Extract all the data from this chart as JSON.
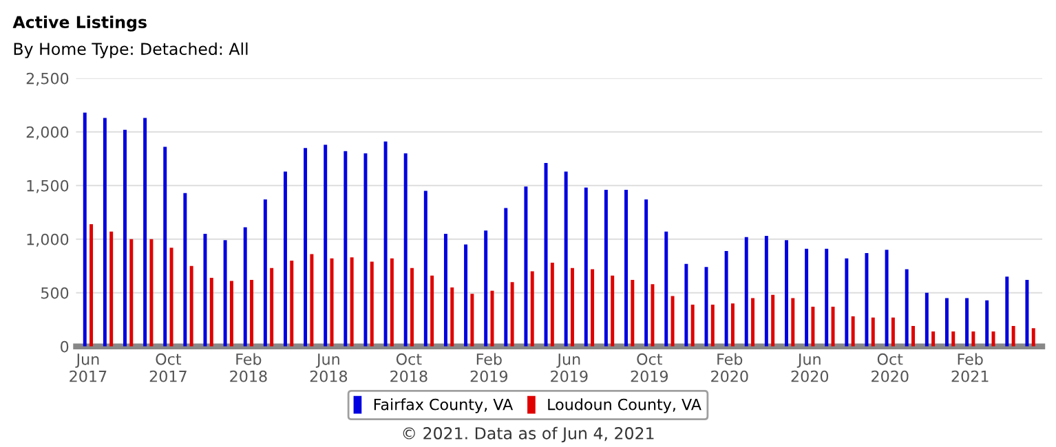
{
  "chart_data": {
    "type": "bar",
    "title": "Active Listings",
    "subtitle": "By Home Type: Detached: All",
    "categories": [
      "Jun\n2017",
      null,
      null,
      null,
      "Oct\n2017",
      null,
      null,
      null,
      "Feb\n2018",
      null,
      null,
      null,
      "Jun\n2018",
      null,
      null,
      null,
      "Oct\n2018",
      null,
      null,
      null,
      "Feb\n2019",
      null,
      null,
      null,
      "Jun\n2019",
      null,
      null,
      null,
      "Oct\n2019",
      null,
      null,
      null,
      "Feb\n2020",
      null,
      null,
      null,
      "Jun\n2020",
      null,
      null,
      null,
      "Oct\n2020",
      null,
      null,
      null,
      "Feb\n2021",
      null,
      null,
      null
    ],
    "series": [
      {
        "name": "Fairfax County, VA",
        "color": "#0000e0",
        "values": [
          2180,
          2130,
          2020,
          2130,
          1860,
          1430,
          1050,
          990,
          1110,
          1370,
          1630,
          1850,
          1880,
          1820,
          1800,
          1910,
          1800,
          1450,
          1050,
          950,
          1080,
          1290,
          1490,
          1710,
          1630,
          1480,
          1460,
          1460,
          1370,
          1070,
          770,
          740,
          890,
          1020,
          1030,
          990,
          910,
          910,
          820,
          870,
          900,
          720,
          500,
          450,
          450,
          430,
          650,
          620
        ]
      },
      {
        "name": "Loudoun County, VA",
        "color": "#e00000",
        "values": [
          1140,
          1070,
          1000,
          1000,
          920,
          750,
          640,
          610,
          620,
          730,
          800,
          860,
          820,
          830,
          790,
          820,
          730,
          660,
          550,
          490,
          520,
          600,
          700,
          780,
          730,
          720,
          660,
          620,
          580,
          470,
          390,
          390,
          400,
          450,
          480,
          450,
          370,
          370,
          280,
          270,
          270,
          190,
          140,
          140,
          140,
          140,
          190,
          170
        ]
      }
    ],
    "ylim": [
      0,
      2500
    ],
    "yticks": [
      0,
      500,
      {
        "value": 1000,
        "label": "1,000"
      },
      {
        "value": 1500,
        "label": "1,500"
      },
      {
        "value": 2000,
        "label": "2,000"
      },
      {
        "value": 2500,
        "label": "2,500"
      }
    ],
    "grid": "y",
    "legend": "bottom",
    "annotations": [
      "© 2021. Data as of Jun 4, 2021"
    ]
  }
}
